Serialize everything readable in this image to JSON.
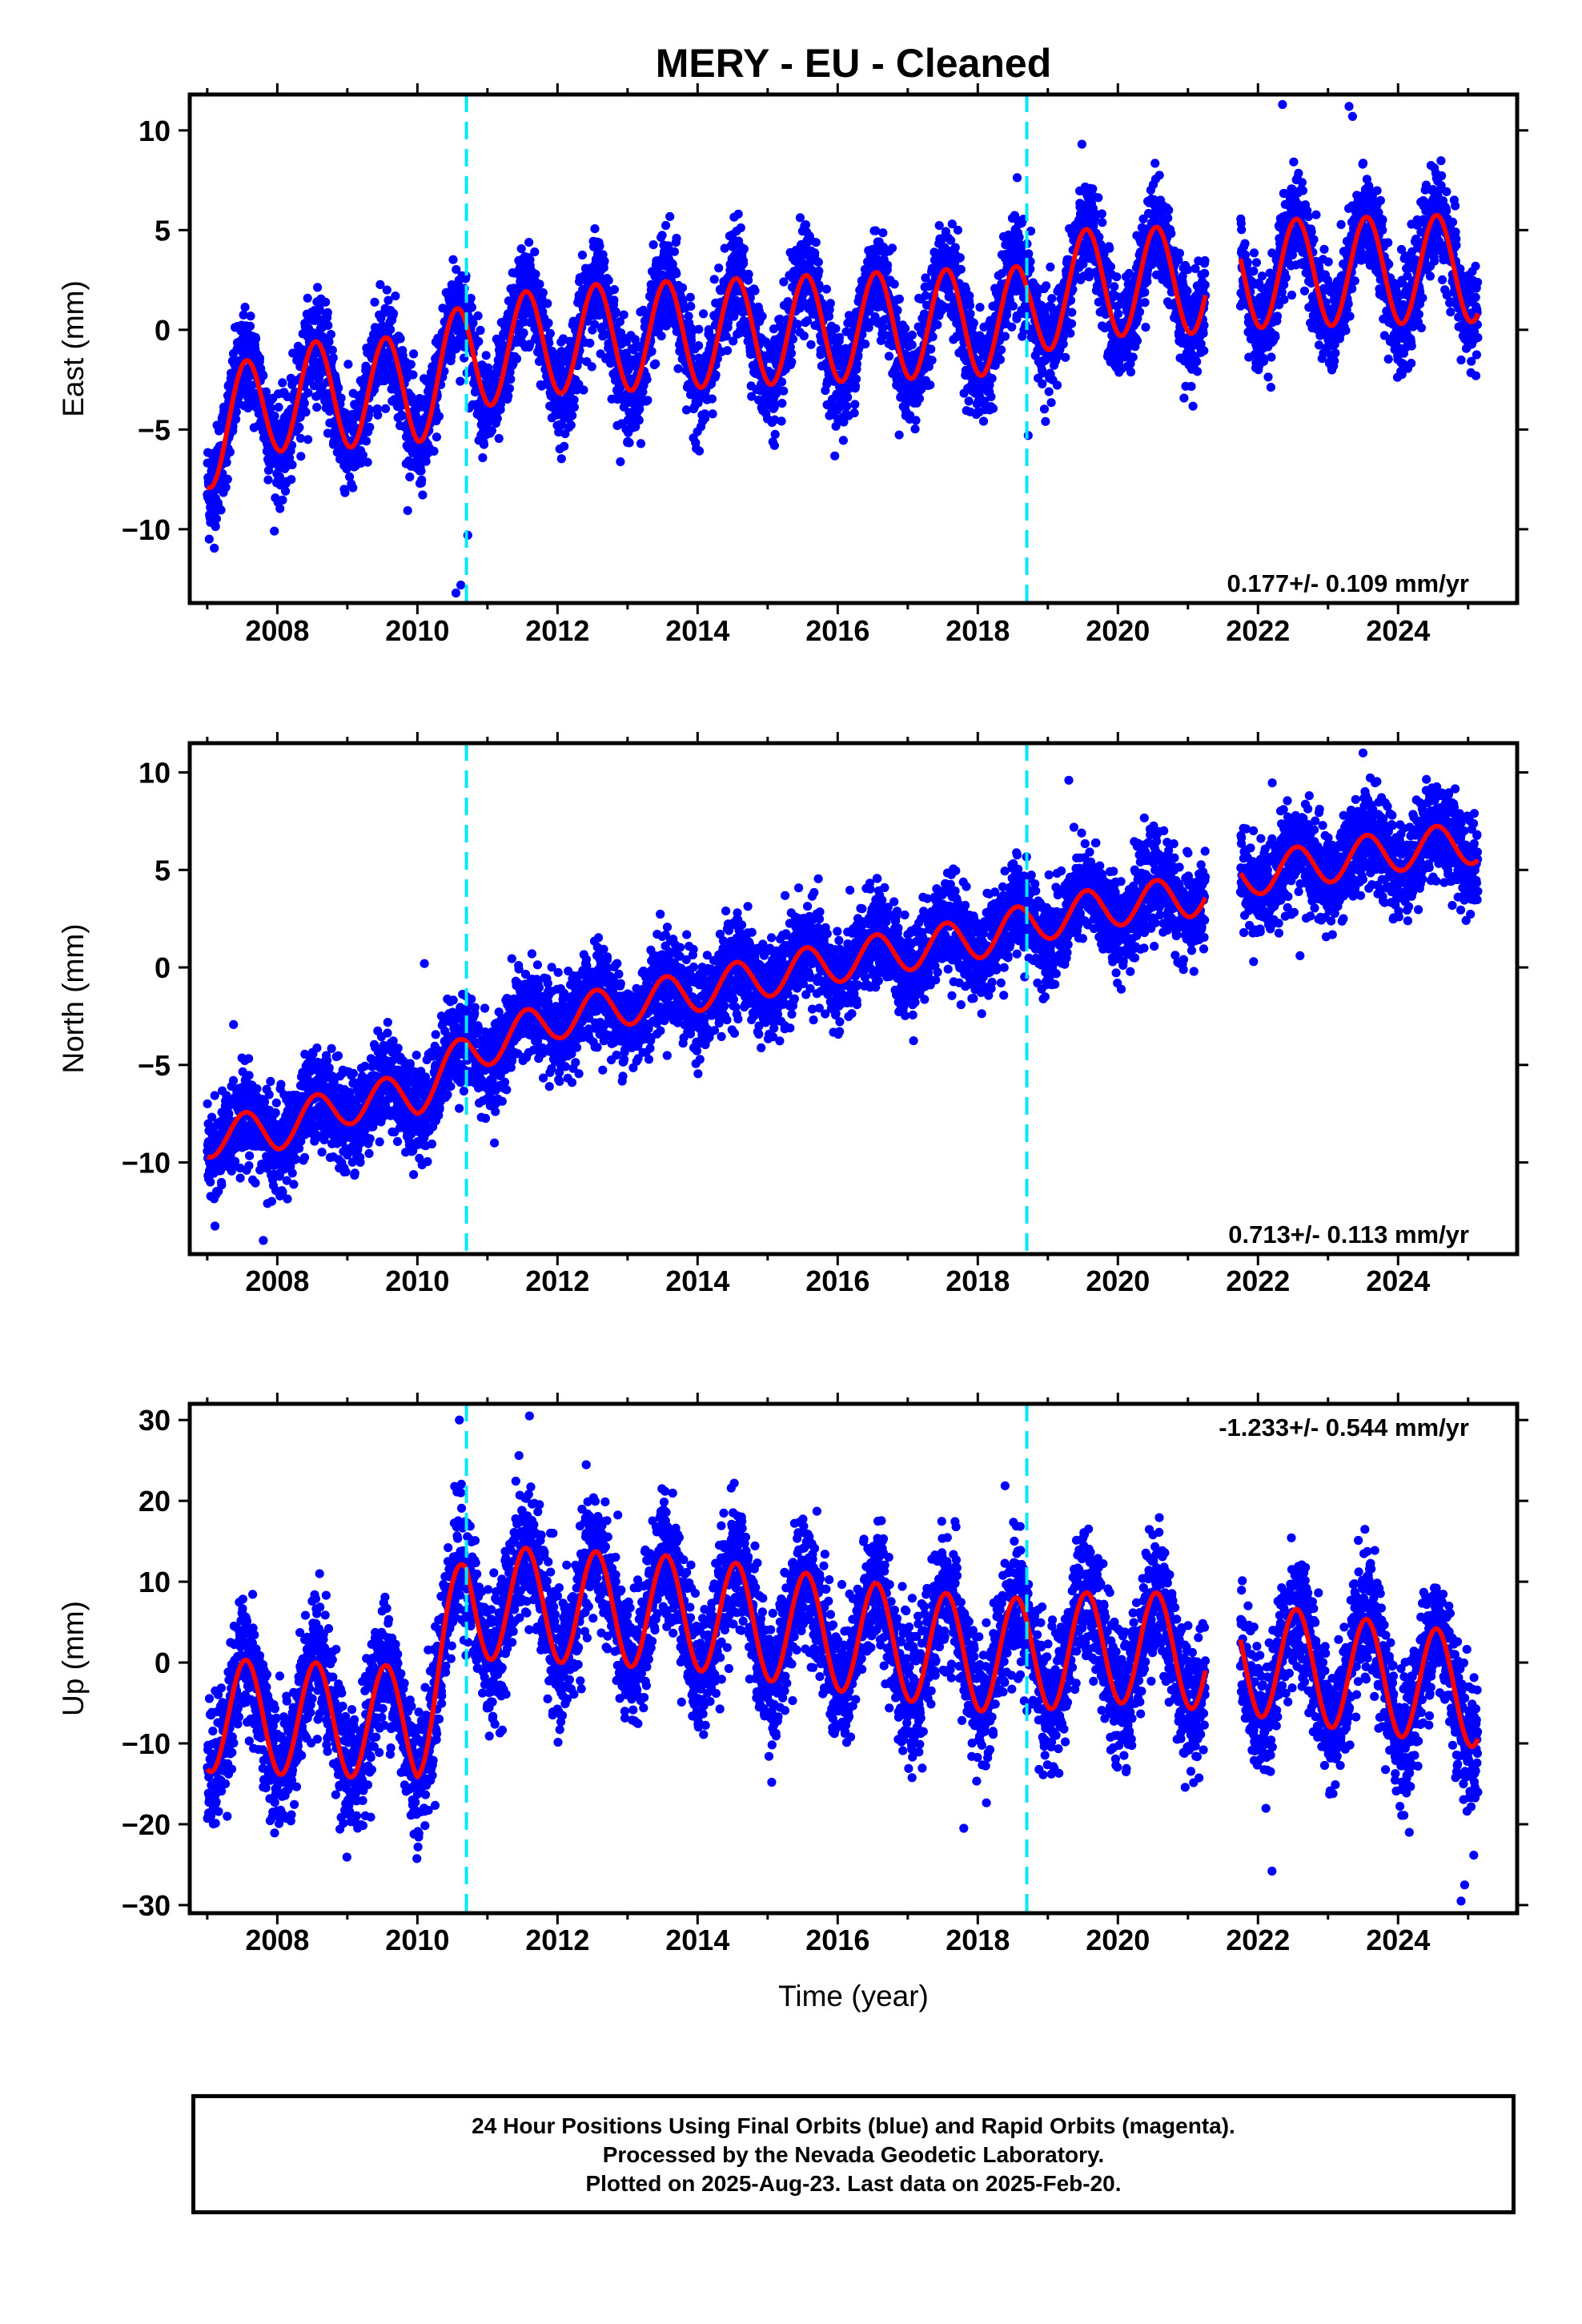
{
  "chart_data": {
    "type": "scatter",
    "title": "MERY  - EU - Cleaned",
    "xlabel": "Time (year)",
    "xlim": [
      2006.75,
      2025.7
    ],
    "x_ticks": [
      "2008",
      "2010",
      "2012",
      "2014",
      "2016",
      "2018",
      "2020",
      "2022",
      "2024"
    ],
    "data_start": 2007.0,
    "data_end": 2025.14,
    "gaps": [
      [
        2021.25,
        2021.75
      ]
    ],
    "equipment_changes": [
      2010.7,
      2018.7
    ],
    "colors": {
      "points": "#0000ff",
      "model": "#ff0000",
      "breaks": "#00e8ff",
      "frame": "#000000"
    },
    "panels": [
      {
        "ylabel": "East (mm)",
        "ylim": [
          -13.7,
          11.8
        ],
        "y_ticks": [
          "10",
          "5",
          "0",
          "−5",
          "−10"
        ],
        "rate_label": "0.177+/- 0.109 mm/yr",
        "rate_position": "bottom-right",
        "model_knots": [
          [
            2007.0,
            -5.3
          ],
          [
            2008.0,
            -3.4
          ],
          [
            2010.0,
            -3.0
          ],
          [
            2010.7,
            -1.3
          ],
          [
            2012.0,
            -0.5
          ],
          [
            2018.7,
            0.5
          ],
          [
            2019.2,
            2.3
          ],
          [
            2021.0,
            2.5
          ],
          [
            2022.0,
            2.8
          ],
          [
            2024.0,
            3.0
          ],
          [
            2025.14,
            3.1
          ]
        ],
        "amplitude": 2.7,
        "scatter_sd": 1.25,
        "outliers": [
          [
            2010.55,
            -13.2
          ],
          [
            2010.62,
            -12.8
          ],
          [
            2010.72,
            -10.3
          ],
          [
            2022.35,
            11.3
          ],
          [
            2023.3,
            11.2
          ],
          [
            2023.35,
            10.7
          ],
          [
            2018.72,
            -5.3
          ]
        ]
      },
      {
        "ylabel": "North (mm)",
        "ylim": [
          -14.7,
          11.5
        ],
        "y_ticks": [
          "10",
          "5",
          "0",
          "−5",
          "−10"
        ],
        "rate_label": "0.713+/- 0.113 mm/yr",
        "rate_position": "bottom-right",
        "model_knots": [
          [
            2007.0,
            -8.7
          ],
          [
            2008.0,
            -8.3
          ],
          [
            2009.0,
            -7.0
          ],
          [
            2010.0,
            -6.5
          ],
          [
            2010.7,
            -4.4
          ],
          [
            2012.0,
            -2.6
          ],
          [
            2014.0,
            -1.2
          ],
          [
            2016.0,
            0.3
          ],
          [
            2018.0,
            1.5
          ],
          [
            2019.0,
            2.5
          ],
          [
            2020.0,
            3.2
          ],
          [
            2021.0,
            3.6
          ],
          [
            2022.0,
            4.8
          ],
          [
            2023.0,
            5.4
          ],
          [
            2024.0,
            6.0
          ],
          [
            2025.14,
            6.4
          ]
        ],
        "amplitude": 1.05,
        "scatter_sd": 1.2,
        "outliers": [
          [
            2019.3,
            9.6
          ],
          [
            2023.5,
            11.0
          ],
          [
            2011.1,
            -9.0
          ],
          [
            2022.6,
            0.6
          ],
          [
            2007.8,
            -14.0
          ],
          [
            2010.1,
            0.2
          ]
        ]
      },
      {
        "ylabel": "Up (mm)",
        "ylim": [
          -31,
          32
        ],
        "y_ticks": [
          "30",
          "20",
          "10",
          "0",
          "−10",
          "−20",
          "−30"
        ],
        "rate_label": "-1.233+/- 0.544 mm/yr",
        "rate_position": "top-right",
        "model_knots": [
          [
            2007.0,
            -6.5
          ],
          [
            2010.0,
            -7.5
          ],
          [
            2010.7,
            7.5
          ],
          [
            2012.0,
            7.0
          ],
          [
            2014.0,
            6.0
          ],
          [
            2016.0,
            3.5
          ],
          [
            2018.0,
            1.0
          ],
          [
            2018.7,
            1.0
          ],
          [
            2020.0,
            2.0
          ],
          [
            2021.5,
            1.0
          ],
          [
            2023.0,
            -1.0
          ],
          [
            2025.14,
            -3.5
          ]
        ],
        "amplitude": 7.0,
        "scatter_sd": 4.0,
        "outliers": [
          [
            2011.6,
            30.5
          ],
          [
            2011.45,
            25.6
          ],
          [
            2022.2,
            -25.8
          ],
          [
            2024.9,
            -29.5
          ],
          [
            2024.95,
            -27.5
          ],
          [
            2017.8,
            -20.5
          ],
          [
            2010.6,
            30.0
          ],
          [
            2011.9,
            16.0
          ]
        ]
      }
    ]
  },
  "footer": {
    "line1": "24 Hour Positions Using Final Orbits (blue) and Rapid Orbits (magenta).",
    "line2": "Processed by the Nevada Geodetic Laboratory.",
    "line3": "Plotted on 2025-Aug-23. Last data on 2025-Feb-20."
  }
}
